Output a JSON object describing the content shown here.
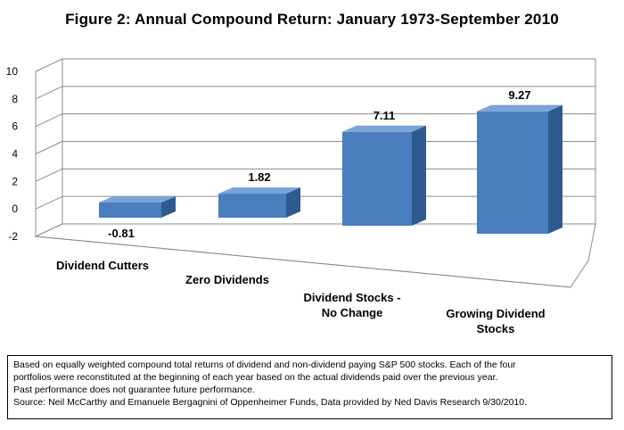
{
  "chart_data": {
    "type": "bar",
    "title": "Figure 2: Annual Compound  Return: January 1973-September 2010",
    "categories": [
      "Dividend Cutters",
      "Zero Dividends",
      "Dividend Stocks - No Change",
      "Growing Dividend Stocks"
    ],
    "category_label_lines": [
      [
        "Dividend Cutters"
      ],
      [
        "Zero Dividends"
      ],
      [
        "Dividend Stocks -",
        "No Change"
      ],
      [
        "Growing Dividend",
        "Stocks"
      ]
    ],
    "values": [
      -0.81,
      1.82,
      7.11,
      9.27
    ],
    "data_labels": [
      "-0.81",
      "1.82",
      "7.11",
      "9.27"
    ],
    "y_ticks": [
      "10",
      "8",
      "6",
      "4",
      "2",
      "0",
      "-2"
    ],
    "ylim": [
      -2,
      10
    ],
    "grid": true,
    "three_d": true,
    "bar_color": "#4a7ebf",
    "bar_side_color": "#2f5a8f",
    "bar_top_color": "#7aa3d8"
  },
  "notes": [
    "Based on equally weighted compound total returns of dividend and non-dividend paying S&P 500 stocks. Each of the four",
    "portfolios were reconstituted at the beginning of each year based on the actual dividends paid over the previous year.",
    "Past performance does not guarantee future performance.",
    "Source:  Neil McCarthy and Emanuele Bergagnini of Oppenheimer Funds, Data provided by Ned Davis Research 9/30/2010."
  ]
}
